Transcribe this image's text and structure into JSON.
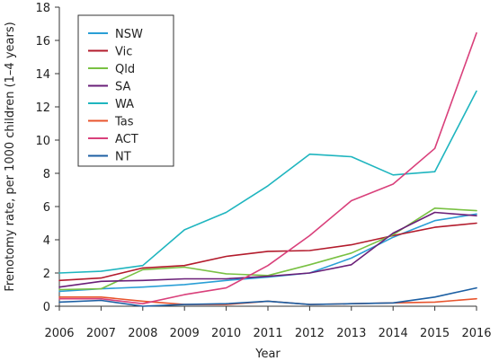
{
  "chart_data": {
    "type": "line",
    "title": "",
    "xlabel": "Year",
    "ylabel": "Frenotomy rate, per 1000 children (1–4 years)",
    "x": [
      2006,
      2007,
      2008,
      2009,
      2010,
      2011,
      2012,
      2013,
      2014,
      2015,
      2016
    ],
    "xlim": [
      2006,
      2016
    ],
    "ylim": [
      0,
      18
    ],
    "yticks": [
      0,
      2,
      4,
      6,
      8,
      10,
      12,
      14,
      16,
      18
    ],
    "grid": false,
    "legend": "top-left",
    "series": [
      {
        "name": "NSW",
        "color": "#2a9fd6",
        "values": [
          0.9,
          1.05,
          1.15,
          1.3,
          1.55,
          1.75,
          2.0,
          2.9,
          4.15,
          5.15,
          5.55
        ]
      },
      {
        "name": "Vic",
        "color": "#b31b2c",
        "values": [
          1.55,
          1.7,
          2.3,
          2.45,
          3.0,
          3.3,
          3.35,
          3.7,
          4.25,
          4.75,
          5.0
        ]
      },
      {
        "name": "Qld",
        "color": "#79c143",
        "values": [
          1.0,
          1.05,
          2.2,
          2.35,
          1.95,
          1.85,
          2.5,
          3.2,
          4.3,
          5.9,
          5.75
        ]
      },
      {
        "name": "SA",
        "color": "#6a1f78",
        "values": [
          1.15,
          1.5,
          1.55,
          1.65,
          1.65,
          1.8,
          2.0,
          2.5,
          4.4,
          5.65,
          5.45
        ]
      },
      {
        "name": "WA",
        "color": "#1fb5bf",
        "values": [
          2.0,
          2.1,
          2.45,
          4.6,
          5.65,
          7.25,
          9.15,
          9.0,
          7.9,
          8.1,
          12.95
        ]
      },
      {
        "name": "Tas",
        "color": "#e8542d",
        "values": [
          0.55,
          0.55,
          0.3,
          0.1,
          0.1,
          0.3,
          0.1,
          0.15,
          0.2,
          0.25,
          0.45
        ]
      },
      {
        "name": "ACT",
        "color": "#d9407b",
        "values": [
          0.45,
          0.45,
          0.15,
          0.7,
          1.1,
          2.45,
          4.25,
          6.35,
          7.35,
          9.5,
          16.45
        ]
      },
      {
        "name": "NT",
        "color": "#1c5fa3",
        "values": [
          0.25,
          0.35,
          0.0,
          0.1,
          0.15,
          0.3,
          0.1,
          0.15,
          0.2,
          0.55,
          1.1
        ]
      }
    ]
  }
}
